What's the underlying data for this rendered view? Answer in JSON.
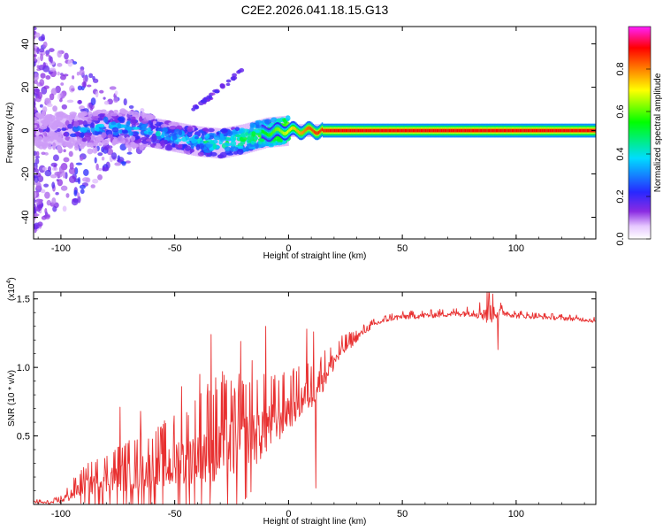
{
  "title": "C2E2.2026.041.18.15.G13",
  "chart_data": [
    {
      "type": "heatmap",
      "title": "C2E2.2026.041.18.15.G13",
      "xlabel": "Height of straight line (km)",
      "ylabel": "Frequency (Hz)",
      "xlim": [
        -112,
        135
      ],
      "ylim": [
        -50,
        48
      ],
      "x_ticks": [
        -100,
        -50,
        0,
        50,
        100
      ],
      "y_ticks": [
        -40,
        -20,
        0,
        20,
        40
      ],
      "colorbar": {
        "label": "Normalized spectral amplitude",
        "range": [
          0,
          1
        ],
        "ticks": [
          "0.0",
          "0.2",
          "0.4",
          "0.6",
          "0.8"
        ],
        "colormap": "rainbow (white-violet-blue-cyan-green-yellow-red-magenta)"
      },
      "ridge": {
        "x": [
          -110,
          -100,
          -90,
          -80,
          -70,
          -60,
          -50,
          -40,
          -30,
          -20,
          -10,
          0,
          10,
          20,
          50,
          100,
          135
        ],
        "freq": [
          0,
          0,
          0,
          2,
          1,
          -1,
          -3,
          -5,
          -6,
          -4,
          -1,
          0,
          0,
          0,
          0,
          0,
          0
        ],
        "amplitude": [
          0.15,
          0.2,
          0.3,
          0.35,
          0.35,
          0.35,
          0.35,
          0.4,
          0.45,
          0.5,
          0.55,
          0.7,
          0.85,
          0.9,
          0.9,
          0.9,
          0.9
        ]
      },
      "faint_streak": {
        "x": [
          -42,
          -35,
          -28,
          -20
        ],
        "freq": [
          10,
          15,
          21,
          28
        ]
      }
    },
    {
      "type": "line",
      "xlabel": "Height of straight line (km)",
      "ylabel": "SNR (10 * v/v)",
      "y_multiplier": "(x10",
      "y_exponent": "4",
      "xlim": [
        -112,
        135
      ],
      "ylim": [
        0,
        1.55
      ],
      "x_ticks": [
        -100,
        -50,
        0,
        50,
        100
      ],
      "y_ticks": [
        "0.5",
        "1.0",
        "1.5"
      ],
      "series": [
        {
          "name": "SNR",
          "color": "#e83030",
          "x": [
            -112,
            -105,
            -100,
            -95,
            -90,
            -85,
            -80,
            -75,
            -70,
            -65,
            -60,
            -55,
            -50,
            -45,
            -40,
            -35,
            -30,
            -25,
            -20,
            -15,
            -10,
            -5,
            0,
            5,
            10,
            15,
            20,
            25,
            30,
            35,
            40,
            45,
            50,
            60,
            70,
            80,
            85,
            88,
            90,
            95,
            100,
            110,
            120,
            130,
            135
          ],
          "base": [
            0.02,
            0.01,
            0.03,
            0.08,
            0.14,
            0.16,
            0.19,
            0.21,
            0.22,
            0.24,
            0.25,
            0.27,
            0.3,
            0.32,
            0.36,
            0.4,
            0.42,
            0.43,
            0.47,
            0.5,
            0.57,
            0.62,
            0.7,
            0.76,
            0.82,
            0.93,
            1.05,
            1.15,
            1.22,
            1.29,
            1.33,
            1.36,
            1.37,
            1.38,
            1.39,
            1.4,
            1.4,
            1.4,
            1.41,
            1.4,
            1.38,
            1.37,
            1.36,
            1.35,
            1.34
          ],
          "noise": [
            0.02,
            0.02,
            0.04,
            0.1,
            0.14,
            0.18,
            0.22,
            0.24,
            0.26,
            0.28,
            0.3,
            0.34,
            0.38,
            0.42,
            0.48,
            0.55,
            0.55,
            0.5,
            0.5,
            0.42,
            0.4,
            0.34,
            0.28,
            0.26,
            0.24,
            0.2,
            0.14,
            0.1,
            0.06,
            0.05,
            0.04,
            0.04,
            0.04,
            0.04,
            0.04,
            0.05,
            0.1,
            0.2,
            0.12,
            0.05,
            0.04,
            0.03,
            0.03,
            0.03,
            0.03
          ],
          "spikes": [
            {
              "x": -74,
              "y": 0.71
            },
            {
              "x": -65,
              "y": 0.68
            },
            {
              "x": -47,
              "y": 0.86
            },
            {
              "x": -39,
              "y": 0.95
            },
            {
              "x": -34,
              "y": 1.24
            },
            {
              "x": -29,
              "y": 0.97
            },
            {
              "x": -21,
              "y": 1.19
            },
            {
              "x": -16,
              "y": 1.05
            },
            {
              "x": -10,
              "y": 1.3
            },
            {
              "x": 8,
              "y": 1.28
            },
            {
              "x": 11,
              "y": 1.26
            },
            {
              "x": 12,
              "y": 0.12
            },
            {
              "x": 14,
              "y": 1.03
            },
            {
              "x": 88,
              "y": 1.55
            },
            {
              "x": 92,
              "y": 1.13
            }
          ]
        }
      ]
    }
  ]
}
